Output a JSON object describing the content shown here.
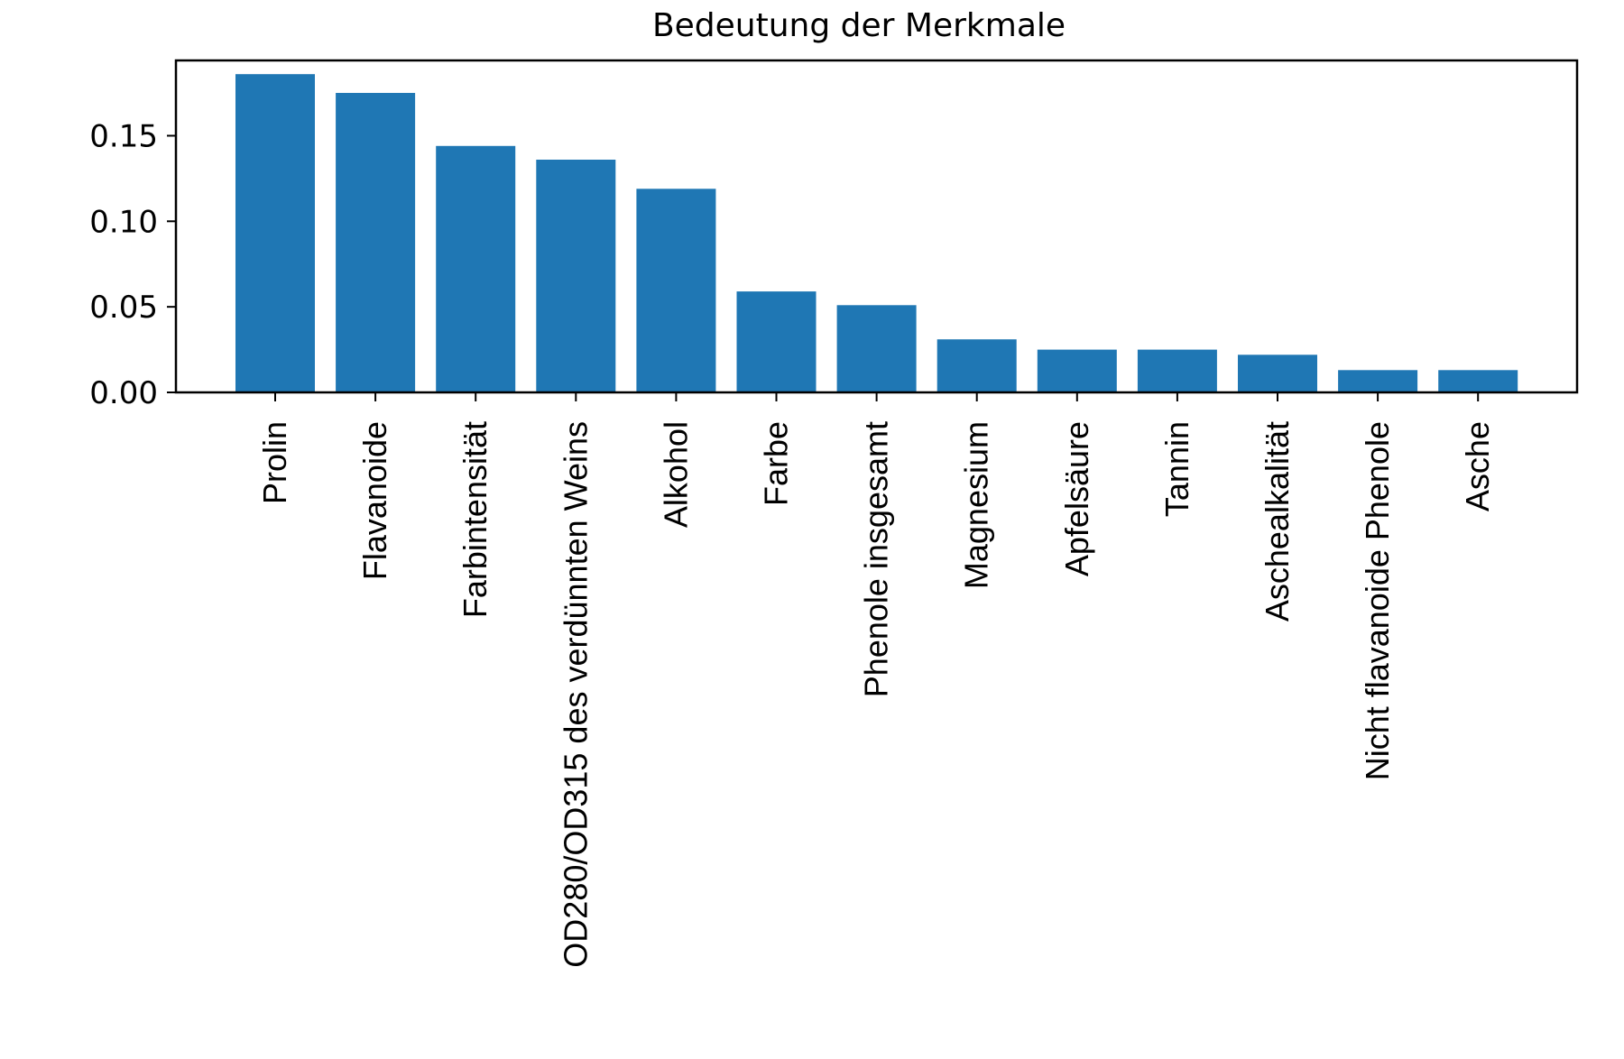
{
  "chart_data": {
    "type": "bar",
    "title": "Bedeutung der Merkmale",
    "xlabel": "",
    "ylabel": "",
    "categories": [
      "Prolin",
      "Flavanoide",
      "Farbintensität",
      "OD280/OD315 des verdünnten Weins",
      "Alkohol",
      "Farbe",
      "Phenole insgesamt",
      "Magnesium",
      "Apfelsäure",
      "Tannin",
      "Aschealkalität",
      "Nicht flavanoide Phenole",
      "Asche"
    ],
    "values": [
      0.186,
      0.175,
      0.144,
      0.136,
      0.119,
      0.059,
      0.051,
      0.031,
      0.025,
      0.025,
      0.022,
      0.013,
      0.013
    ],
    "ylim": [
      0,
      0.194
    ],
    "yticks": [
      "0.00",
      "0.05",
      "0.10",
      "0.15"
    ],
    "bar_color": "#1f77b4",
    "grid": false,
    "legend": "none"
  }
}
